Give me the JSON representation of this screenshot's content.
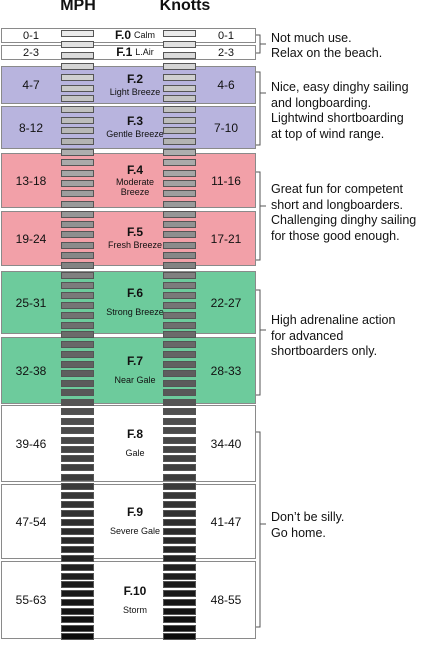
{
  "headers": {
    "mph": "MPH",
    "knots": "Knotts"
  },
  "colors": {
    "light": "#b8b4de",
    "fun": "#f2a0a8",
    "adrenaline": "#6dcb9c",
    "silly": "#ffffff",
    "calm": "#ffffff"
  },
  "forces": [
    {
      "force": "F.0",
      "name": "Calm",
      "mph": "0-1",
      "knots": "0-1",
      "group": "calm",
      "inline": true,
      "mph_max": 1
    },
    {
      "force": "F.1",
      "name": "L.Air",
      "mph": "2-3",
      "knots": "2-3",
      "group": "calm",
      "inline": true,
      "mph_max": 3
    },
    {
      "force": "F.2",
      "name": "Light Breeze",
      "mph": "4-7",
      "knots": "4-6",
      "group": "light",
      "inline": false,
      "mph_max": 7
    },
    {
      "force": "F.3",
      "name": "Gentle Breeze",
      "mph": "8-12",
      "knots": "7-10",
      "group": "light",
      "inline": false,
      "mph_max": 12
    },
    {
      "force": "F.4",
      "name": "Moderate Breeze",
      "mph": "13-18",
      "knots": "11-16",
      "group": "fun",
      "inline": false,
      "mph_max": 18
    },
    {
      "force": "F.5",
      "name": "Fresh Breeze",
      "mph": "19-24",
      "knots": "17-21",
      "group": "fun",
      "inline": false,
      "mph_max": 24
    },
    {
      "force": "F.6",
      "name": "Strong Breeze",
      "mph": "25-31",
      "knots": "22-27",
      "group": "adrenaline",
      "inline": false,
      "mph_max": 31
    },
    {
      "force": "F.7",
      "name": "Near Gale",
      "mph": "32-38",
      "knots": "28-33",
      "group": "adrenaline",
      "inline": false,
      "mph_max": 38
    },
    {
      "force": "F.8",
      "name": "Gale",
      "mph": "39-46",
      "knots": "34-40",
      "group": "silly",
      "inline": false,
      "mph_max": 46
    },
    {
      "force": "F.9",
      "name": "Severe Gale",
      "mph": "47-54",
      "knots": "41-47",
      "group": "silly",
      "inline": false,
      "mph_max": 54
    },
    {
      "force": "F.10",
      "name": "Storm",
      "mph": "55-63",
      "knots": "48-55",
      "group": "silly",
      "inline": false,
      "mph_max": 63
    }
  ],
  "notes": [
    {
      "id": "note-calm-f0",
      "text": "Not much use."
    },
    {
      "id": "note-calm-f1",
      "text": "Relax on the beach."
    },
    {
      "id": "note-light",
      "text": "Nice, easy dinghy sailing\nand longboarding.\nLightwind shortboarding\nat top of wind range."
    },
    {
      "id": "note-fun",
      "text": "Great fun for competent\nshort and longboarders.\nChallenging dinghy sailing\nfor those good enough."
    },
    {
      "id": "note-adrenaline",
      "text": "High adrenaline action\nfor advanced\nshortboarders only."
    },
    {
      "id": "note-silly",
      "text": "Don’t be silly.\nGo home."
    }
  ]
}
